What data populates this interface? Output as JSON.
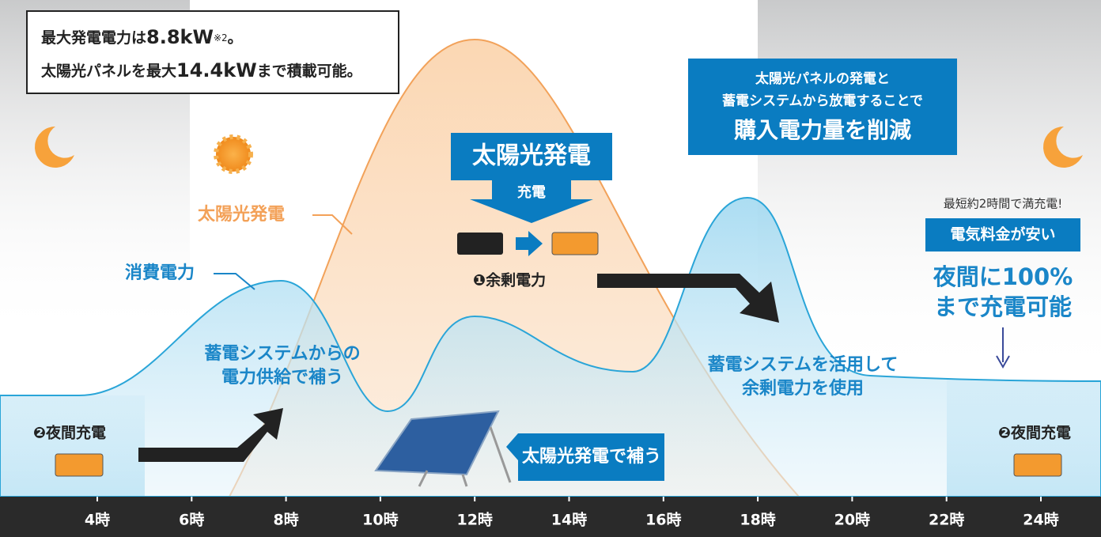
{
  "note": {
    "line1": [
      "最大発電電力は",
      "8.8kW",
      "※2",
      "。"
    ],
    "line2": [
      "太陽光パネルを最大",
      "14.4kW",
      "まで積載可能。"
    ]
  },
  "callout_reduce": {
    "lines": [
      "太陽光パネルの発電と",
      "蓄電システムから放電することで"
    ],
    "emphasis": "購入電力量を削減"
  },
  "curve_labels": {
    "solar": "太陽光発電",
    "consumption": "消費電力"
  },
  "charge_box": {
    "title": "太陽光発電",
    "action": "充電"
  },
  "surplus": "❶余剰電力",
  "supply_note": [
    "蓄電システムからの",
    "電力供給で補う"
  ],
  "use_note": [
    "蓄電システムを活用して",
    "余剰電力を使用"
  ],
  "solar_support": "太陽光発電で補う",
  "night_charge": [
    "❷夜間充電",
    "❷夜間充電"
  ],
  "night_info": {
    "fast": "最短約2時間で満充電!",
    "cheap": "電気料金が安い",
    "lines": [
      "夜間に100%",
      "まで充電可能"
    ]
  },
  "axis_labels": [
    "4時",
    "6時",
    "8時",
    "10時",
    "12時",
    "14時",
    "16時",
    "18時",
    "20時",
    "22時",
    "24時"
  ]
}
